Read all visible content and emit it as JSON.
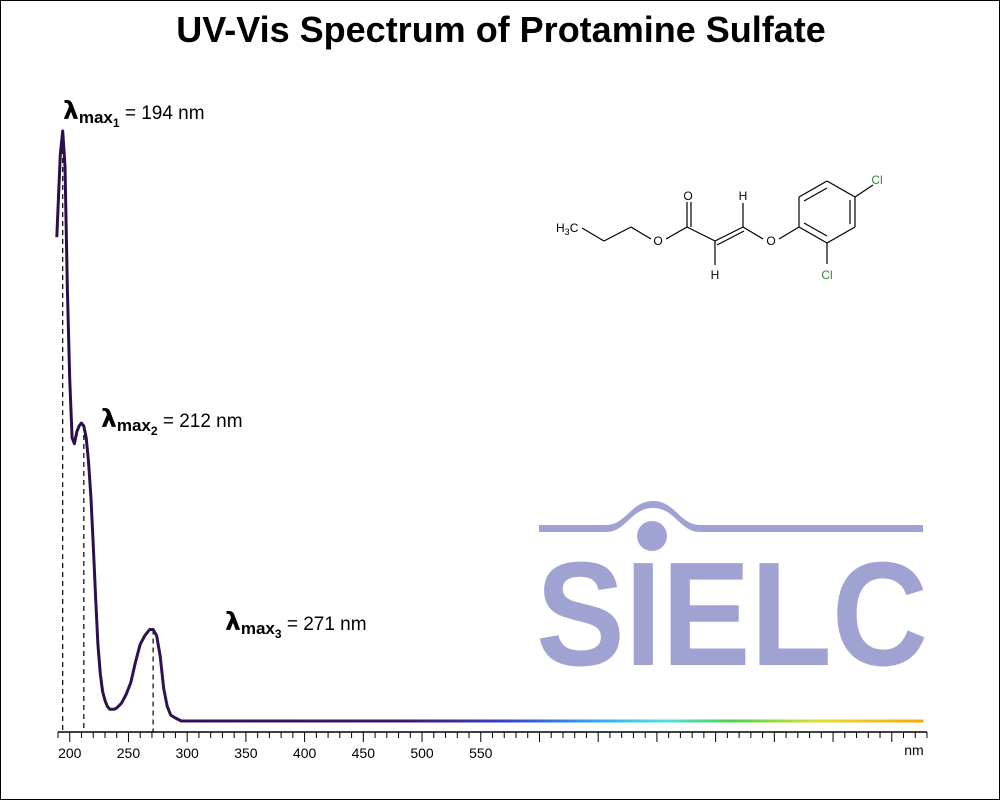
{
  "chart_data": {
    "type": "line",
    "title": "UV-Vis Spectrum of Protamine Sulfate",
    "xlabel": "",
    "x_unit": "nm",
    "ylabel": "",
    "xlim": [
      190,
      930
    ],
    "ylim": [
      0,
      1
    ],
    "x_ticks": [
      200,
      250,
      300,
      350,
      400,
      450,
      500,
      550
    ],
    "grid": false,
    "legend": "none",
    "line_color": "#2a0f4a",
    "series": [
      {
        "x": [
          189,
          192,
          194,
          196,
          198,
          200,
          202,
          204,
          206,
          208,
          210,
          212,
          214,
          216,
          218,
          220,
          222,
          224,
          226,
          228,
          230,
          232,
          234,
          236,
          238,
          240,
          244,
          248,
          252,
          256,
          260,
          264,
          268,
          271,
          274,
          277,
          280,
          283,
          286,
          290,
          295,
          300,
          350,
          400,
          450,
          500,
          550,
          600,
          650,
          700,
          750,
          800,
          850,
          900,
          927
        ],
        "y": [
          0.82,
          0.96,
          1.0,
          0.94,
          0.73,
          0.58,
          0.48,
          0.47,
          0.49,
          0.5,
          0.505,
          0.5,
          0.48,
          0.44,
          0.38,
          0.3,
          0.21,
          0.13,
          0.08,
          0.05,
          0.035,
          0.025,
          0.02,
          0.02,
          0.02,
          0.022,
          0.03,
          0.045,
          0.065,
          0.1,
          0.13,
          0.145,
          0.155,
          0.155,
          0.145,
          0.11,
          0.055,
          0.025,
          0.01,
          0.005,
          0.0,
          0.0,
          0.0,
          0.0,
          0.0,
          0.0,
          0.0,
          0.0,
          0.0,
          0.0,
          0.0,
          0.0,
          0.0,
          0.0,
          0.0
        ]
      }
    ],
    "annotations": [
      {
        "symbol": "λ",
        "sub": "max",
        "subsub": "1",
        "text": " = 194 nm",
        "x": 194,
        "y": 1.0
      },
      {
        "symbol": "λ",
        "sub": "max",
        "subsub": "2",
        "text": " = 212 nm",
        "x": 212,
        "y": 0.5
      },
      {
        "symbol": "λ",
        "sub": "max",
        "subsub": "3",
        "text": " = 271 nm",
        "x": 271,
        "y": 0.155
      }
    ]
  },
  "molecule": {
    "atoms": [
      "H3C",
      "O",
      "O",
      "H",
      "H",
      "O",
      "Cl",
      "Cl"
    ]
  },
  "logo": {
    "text": "SIELC",
    "color": "#a0a3d2"
  }
}
